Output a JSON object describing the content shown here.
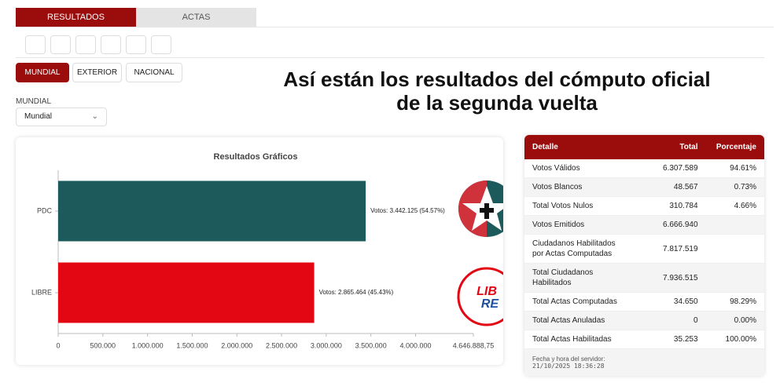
{
  "tabs": [
    "RESULTADOS",
    "ACTAS"
  ],
  "filters": [
    "MUNDIAL",
    "EXTERIOR",
    "NACIONAL"
  ],
  "select": {
    "label": "MUNDIAL",
    "value": "Mundial"
  },
  "headline": [
    "Así están los resultados del cómputo oficial",
    "de la segunda vuelta"
  ],
  "chart_data": {
    "type": "hbar",
    "title": "Resultados Gráficos",
    "categories": [
      "PDC",
      "LIBRE"
    ],
    "values": [
      3442125,
      2865464
    ],
    "value_labels": [
      "Votos: 3.442.125 (54.57%)",
      "Votos: 2.865.464 (45.43%)"
    ],
    "colors": [
      "#1d5a5c",
      "#e30613"
    ],
    "xlim": [
      0,
      4646888.75
    ],
    "xticks": [
      0,
      {
        "value": 500000,
        "label": "500.000"
      },
      {
        "value": 1000000,
        "label": "1.000.000"
      },
      {
        "value": 1500000,
        "label": "1.500.000"
      },
      {
        "value": 2000000,
        "label": "2.000.000"
      },
      {
        "value": 2500000,
        "label": "2.500.000"
      },
      {
        "value": 3000000,
        "label": "3.000.000"
      },
      {
        "value": 3500000,
        "label": "3.500.000"
      },
      {
        "value": 4000000,
        "label": "4.000.000"
      },
      {
        "value": 4646888.75,
        "label": "4.646.888,75"
      }
    ]
  },
  "table": {
    "header": [
      "Detalle",
      "Total",
      "Porcentaje"
    ],
    "rows": [
      [
        "Votos Válidos",
        "6.307.589",
        "94.61%"
      ],
      [
        "Votos Blancos",
        "48.567",
        "0.73%"
      ],
      [
        "Total Votos Nulos",
        "310.784",
        "4.66%"
      ],
      [
        "Votos Emitidos",
        "6.666.940",
        null
      ],
      [
        "Ciudadanos Habilitados\npor Actas Computadas",
        "7.817.519",
        null
      ],
      [
        "Total Ciudadanos\nHabilitados",
        "7.936.515",
        null
      ],
      [
        "Total Actas Computadas",
        "34.650",
        "98.29%"
      ],
      [
        "Total Actas Anuladas",
        "0",
        "0.00%"
      ],
      [
        "Total Actas Habilitadas",
        "35.253",
        "100.00%"
      ]
    ],
    "footer": [
      "Fecha y hora del servidor:",
      "21/10/2025 18:36:28"
    ]
  }
}
